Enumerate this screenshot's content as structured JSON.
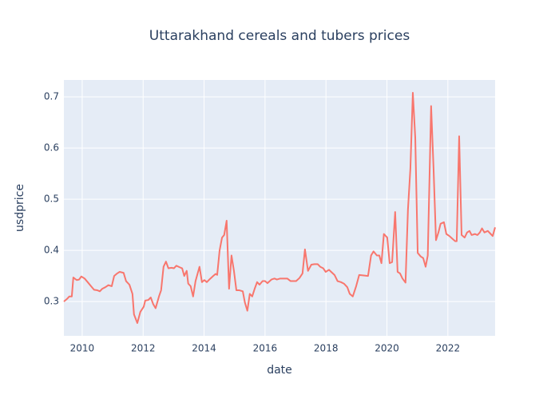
{
  "chart_data": {
    "type": "line",
    "title": "Uttarakhand cereals and tubers prices",
    "x_label": "date",
    "y_label": "usdprice",
    "color": "#f8766d",
    "grid": true,
    "xlim": [
      2009.4,
      2023.55
    ],
    "xticks": [
      2010,
      2012,
      2014,
      2016,
      2018,
      2020,
      2022
    ],
    "ylim": [
      0.233,
      0.733
    ],
    "yticks": [
      0.3,
      0.4,
      0.5,
      0.6,
      0.7
    ],
    "x": [
      2009.4,
      2009.5,
      2009.58,
      2009.66,
      2009.71,
      2009.82,
      2009.9,
      2009.97,
      2010.08,
      2010.18,
      2010.29,
      2010.39,
      2010.5,
      2010.58,
      2010.66,
      2010.76,
      2010.86,
      2010.97,
      2011.05,
      2011.15,
      2011.23,
      2011.36,
      2011.44,
      2011.55,
      2011.65,
      2011.7,
      2011.81,
      2011.91,
      2012.02,
      2012.07,
      2012.17,
      2012.25,
      2012.33,
      2012.41,
      2012.52,
      2012.59,
      2012.67,
      2012.75,
      2012.83,
      2012.93,
      2013.01,
      2013.09,
      2013.2,
      2013.28,
      2013.35,
      2013.43,
      2013.48,
      2013.56,
      2013.64,
      2013.72,
      2013.85,
      2013.93,
      2014.01,
      2014.09,
      2014.19,
      2014.3,
      2014.38,
      2014.43,
      2014.51,
      2014.59,
      2014.66,
      2014.74,
      2014.82,
      2014.9,
      2014.98,
      2015.06,
      2015.16,
      2015.27,
      2015.34,
      2015.42,
      2015.5,
      2015.58,
      2015.66,
      2015.74,
      2015.82,
      2015.92,
      2016.0,
      2016.08,
      2016.21,
      2016.31,
      2016.39,
      2016.5,
      2016.6,
      2016.73,
      2016.84,
      2016.94,
      2017.02,
      2017.13,
      2017.23,
      2017.31,
      2017.41,
      2017.52,
      2017.62,
      2017.73,
      2017.81,
      2017.91,
      2017.99,
      2018.1,
      2018.17,
      2018.28,
      2018.38,
      2018.49,
      2018.59,
      2018.7,
      2018.78,
      2018.88,
      2018.99,
      2019.09,
      2019.38,
      2019.48,
      2019.56,
      2019.67,
      2019.75,
      2019.82,
      2019.9,
      2020.01,
      2020.09,
      2020.17,
      2020.27,
      2020.35,
      2020.43,
      2020.51,
      2020.61,
      2020.69,
      2020.77,
      2020.85,
      2020.93,
      2021.01,
      2021.11,
      2021.19,
      2021.27,
      2021.34,
      2021.45,
      2021.53,
      2021.61,
      2021.69,
      2021.76,
      2021.87,
      2021.95,
      2022.05,
      2022.16,
      2022.24,
      2022.29,
      2022.37,
      2022.45,
      2022.55,
      2022.63,
      2022.71,
      2022.78,
      2022.89,
      2022.97,
      2023.05,
      2023.12,
      2023.2,
      2023.31,
      2023.39,
      2023.47,
      2023.55
    ],
    "values": [
      0.3,
      0.305,
      0.31,
      0.31,
      0.347,
      0.342,
      0.343,
      0.349,
      0.345,
      0.338,
      0.33,
      0.323,
      0.322,
      0.32,
      0.325,
      0.328,
      0.332,
      0.33,
      0.35,
      0.355,
      0.358,
      0.356,
      0.34,
      0.333,
      0.315,
      0.275,
      0.258,
      0.28,
      0.29,
      0.302,
      0.303,
      0.308,
      0.295,
      0.287,
      0.31,
      0.322,
      0.368,
      0.378,
      0.365,
      0.366,
      0.365,
      0.37,
      0.367,
      0.365,
      0.35,
      0.36,
      0.335,
      0.33,
      0.31,
      0.34,
      0.368,
      0.338,
      0.342,
      0.338,
      0.344,
      0.35,
      0.354,
      0.352,
      0.4,
      0.425,
      0.43,
      0.458,
      0.325,
      0.39,
      0.36,
      0.322,
      0.322,
      0.32,
      0.298,
      0.282,
      0.315,
      0.31,
      0.325,
      0.338,
      0.333,
      0.34,
      0.34,
      0.336,
      0.343,
      0.345,
      0.343,
      0.345,
      0.345,
      0.345,
      0.34,
      0.34,
      0.34,
      0.346,
      0.355,
      0.402,
      0.36,
      0.372,
      0.373,
      0.373,
      0.368,
      0.365,
      0.358,
      0.362,
      0.358,
      0.352,
      0.34,
      0.338,
      0.335,
      0.328,
      0.315,
      0.31,
      0.33,
      0.352,
      0.35,
      0.39,
      0.398,
      0.39,
      0.39,
      0.375,
      0.432,
      0.425,
      0.375,
      0.377,
      0.475,
      0.358,
      0.355,
      0.345,
      0.337,
      0.48,
      0.56,
      0.708,
      0.62,
      0.395,
      0.388,
      0.385,
      0.368,
      0.39,
      0.682,
      0.56,
      0.42,
      0.435,
      0.452,
      0.455,
      0.432,
      0.428,
      0.422,
      0.418,
      0.418,
      0.623,
      0.43,
      0.425,
      0.435,
      0.438,
      0.43,
      0.432,
      0.43,
      0.435,
      0.443,
      0.435,
      0.438,
      0.433,
      0.428,
      0.445
    ]
  }
}
